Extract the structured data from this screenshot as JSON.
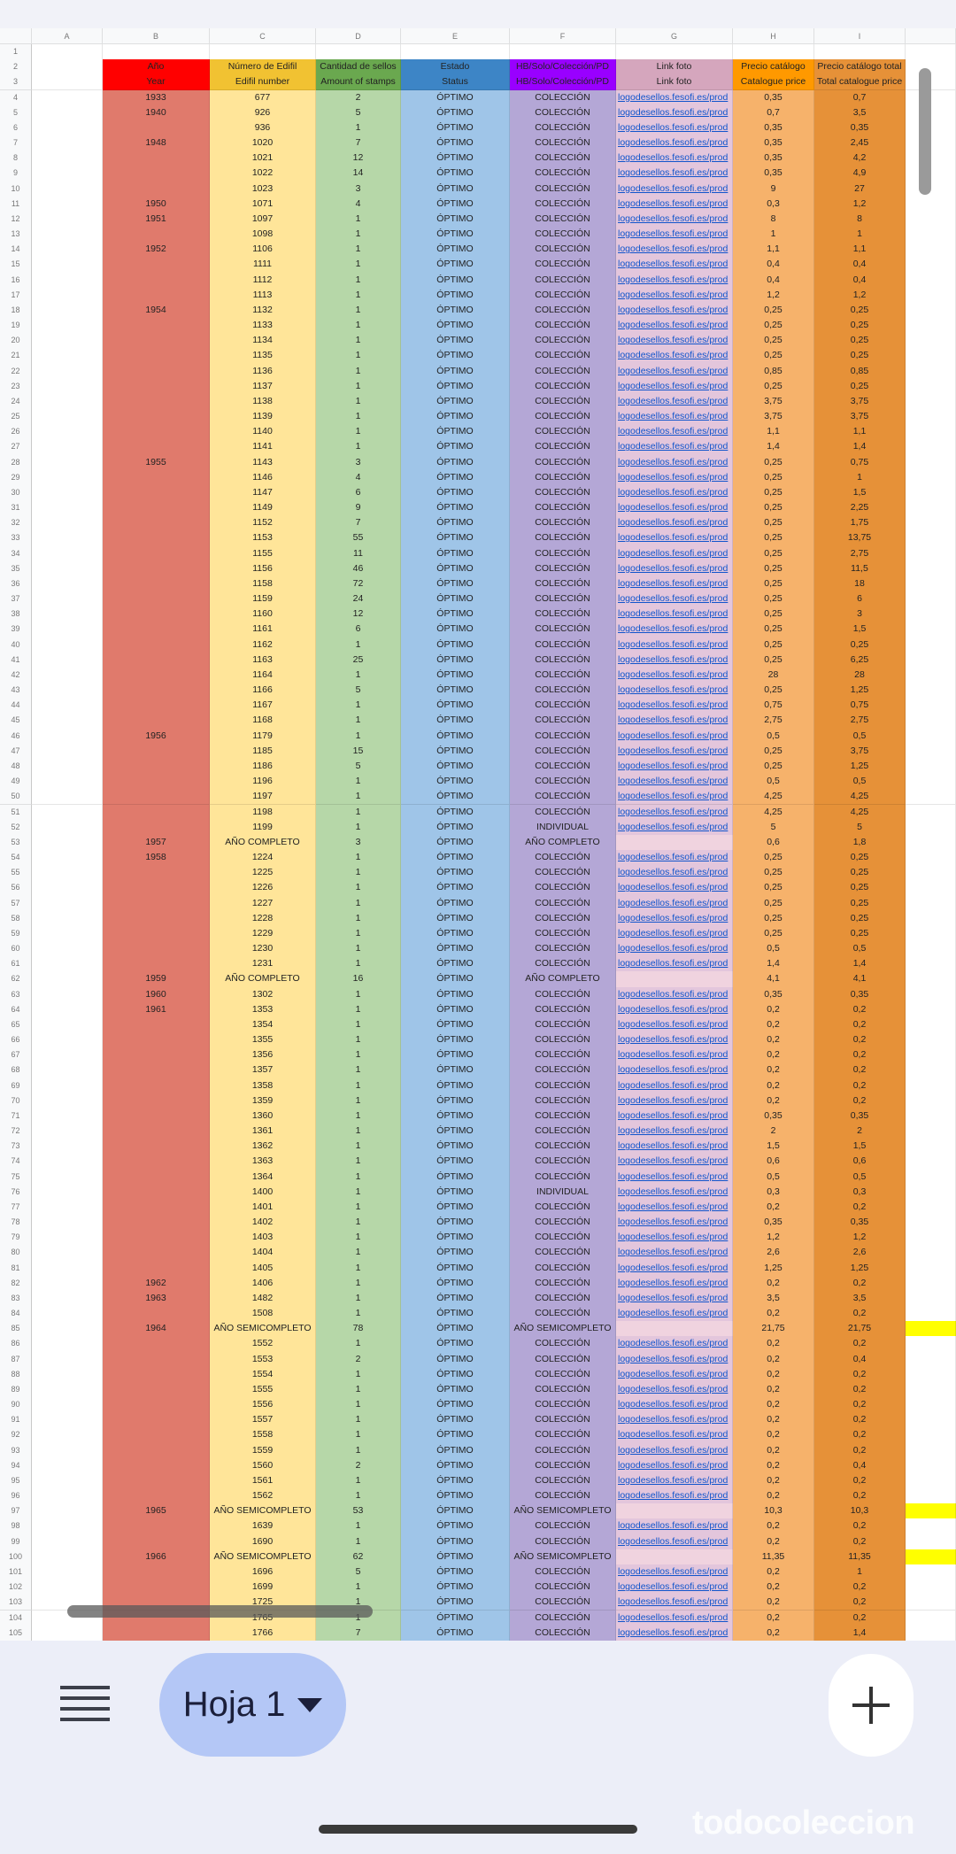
{
  "column_letters": [
    "A",
    "B",
    "C",
    "D",
    "E",
    "F",
    "G",
    "H",
    "I"
  ],
  "rows": [
    [
      1,
      null,
      null,
      null,
      null,
      null,
      null,
      null,
      null
    ],
    [
      2,
      "Año",
      "Número de Edifil",
      "Cantidad de sellos",
      "Estado",
      "HB/Solo/Colección/PD",
      "Link foto",
      "Precio catálogo",
      "Precio catálogo total"
    ],
    [
      3,
      "Year",
      "Edifil number",
      "Amount of stamps",
      "Status",
      "HB/Solo/Colección/PD",
      "Link foto",
      "Catalogue price",
      "Total catalogue price"
    ],
    [
      4,
      "1933",
      "677",
      "2",
      "ÓPTIMO",
      "COLECCIÓN",
      "logodesellos.fesofi.es/prod",
      "0,35",
      "0,7"
    ],
    [
      5,
      "1940",
      "926",
      "5",
      "ÓPTIMO",
      "COLECCIÓN",
      "logodesellos.fesofi.es/prod",
      "0,7",
      "3,5"
    ],
    [
      6,
      null,
      "936",
      "1",
      "ÓPTIMO",
      "COLECCIÓN",
      "logodesellos.fesofi.es/prod",
      "0,35",
      "0,35"
    ],
    [
      7,
      "1948",
      "1020",
      "7",
      "ÓPTIMO",
      "COLECCIÓN",
      "logodesellos.fesofi.es/prod",
      "0,35",
      "2,45"
    ],
    [
      8,
      null,
      "1021",
      "12",
      "ÓPTIMO",
      "COLECCIÓN",
      "logodesellos.fesofi.es/prod",
      "0,35",
      "4,2"
    ],
    [
      9,
      null,
      "1022",
      "14",
      "ÓPTIMO",
      "COLECCIÓN",
      "logodesellos.fesofi.es/prod",
      "0,35",
      "4,9"
    ],
    [
      10,
      null,
      "1023",
      "3",
      "ÓPTIMO",
      "COLECCIÓN",
      "logodesellos.fesofi.es/prod",
      "9",
      "27"
    ],
    [
      11,
      "1950",
      "1071",
      "4",
      "ÓPTIMO",
      "COLECCIÓN",
      "logodesellos.fesofi.es/prod",
      "0,3",
      "1,2"
    ],
    [
      12,
      "1951",
      "1097",
      "1",
      "ÓPTIMO",
      "COLECCIÓN",
      "logodesellos.fesofi.es/prod",
      "8",
      "8"
    ],
    [
      13,
      null,
      "1098",
      "1",
      "ÓPTIMO",
      "COLECCIÓN",
      "logodesellos.fesofi.es/prod",
      "1",
      "1"
    ],
    [
      14,
      "1952",
      "1106",
      "1",
      "ÓPTIMO",
      "COLECCIÓN",
      "logodesellos.fesofi.es/prod",
      "1,1",
      "1,1"
    ],
    [
      15,
      null,
      "1111",
      "1",
      "ÓPTIMO",
      "COLECCIÓN",
      "logodesellos.fesofi.es/prod",
      "0,4",
      "0,4"
    ],
    [
      16,
      null,
      "1112",
      "1",
      "ÓPTIMO",
      "COLECCIÓN",
      "logodesellos.fesofi.es/prod",
      "0,4",
      "0,4"
    ],
    [
      17,
      null,
      "1113",
      "1",
      "ÓPTIMO",
      "COLECCIÓN",
      "logodesellos.fesofi.es/prod",
      "1,2",
      "1,2"
    ],
    [
      18,
      "1954",
      "1132",
      "1",
      "ÓPTIMO",
      "COLECCIÓN",
      "logodesellos.fesofi.es/prod",
      "0,25",
      "0,25"
    ],
    [
      19,
      null,
      "1133",
      "1",
      "ÓPTIMO",
      "COLECCIÓN",
      "logodesellos.fesofi.es/prod",
      "0,25",
      "0,25"
    ],
    [
      20,
      null,
      "1134",
      "1",
      "ÓPTIMO",
      "COLECCIÓN",
      "logodesellos.fesofi.es/prod",
      "0,25",
      "0,25"
    ],
    [
      21,
      null,
      "1135",
      "1",
      "ÓPTIMO",
      "COLECCIÓN",
      "logodesellos.fesofi.es/prod",
      "0,25",
      "0,25"
    ],
    [
      22,
      null,
      "1136",
      "1",
      "ÓPTIMO",
      "COLECCIÓN",
      "logodesellos.fesofi.es/prod",
      "0,85",
      "0,85"
    ],
    [
      23,
      null,
      "1137",
      "1",
      "ÓPTIMO",
      "COLECCIÓN",
      "logodesellos.fesofi.es/prod",
      "0,25",
      "0,25"
    ],
    [
      24,
      null,
      "1138",
      "1",
      "ÓPTIMO",
      "COLECCIÓN",
      "logodesellos.fesofi.es/prod",
      "3,75",
      "3,75"
    ],
    [
      25,
      null,
      "1139",
      "1",
      "ÓPTIMO",
      "COLECCIÓN",
      "logodesellos.fesofi.es/prod",
      "3,75",
      "3,75"
    ],
    [
      26,
      null,
      "1140",
      "1",
      "ÓPTIMO",
      "COLECCIÓN",
      "logodesellos.fesofi.es/prod",
      "1,1",
      "1,1"
    ],
    [
      27,
      null,
      "1141",
      "1",
      "ÓPTIMO",
      "COLECCIÓN",
      "logodesellos.fesofi.es/prod",
      "1,4",
      "1,4"
    ],
    [
      28,
      "1955",
      "1143",
      "3",
      "ÓPTIMO",
      "COLECCIÓN",
      "logodesellos.fesofi.es/prod",
      "0,25",
      "0,75"
    ],
    [
      29,
      null,
      "1146",
      "4",
      "ÓPTIMO",
      "COLECCIÓN",
      "logodesellos.fesofi.es/prod",
      "0,25",
      "1"
    ],
    [
      30,
      null,
      "1147",
      "6",
      "ÓPTIMO",
      "COLECCIÓN",
      "logodesellos.fesofi.es/prod",
      "0,25",
      "1,5"
    ],
    [
      31,
      null,
      "1149",
      "9",
      "ÓPTIMO",
      "COLECCIÓN",
      "logodesellos.fesofi.es/prod",
      "0,25",
      "2,25"
    ],
    [
      32,
      null,
      "1152",
      "7",
      "ÓPTIMO",
      "COLECCIÓN",
      "logodesellos.fesofi.es/prod",
      "0,25",
      "1,75"
    ],
    [
      33,
      null,
      "1153",
      "55",
      "ÓPTIMO",
      "COLECCIÓN",
      "logodesellos.fesofi.es/prod",
      "0,25",
      "13,75"
    ],
    [
      34,
      null,
      "1155",
      "11",
      "ÓPTIMO",
      "COLECCIÓN",
      "logodesellos.fesofi.es/prod",
      "0,25",
      "2,75"
    ],
    [
      35,
      null,
      "1156",
      "46",
      "ÓPTIMO",
      "COLECCIÓN",
      "logodesellos.fesofi.es/prod",
      "0,25",
      "11,5"
    ],
    [
      36,
      null,
      "1158",
      "72",
      "ÓPTIMO",
      "COLECCIÓN",
      "logodesellos.fesofi.es/prod",
      "0,25",
      "18"
    ],
    [
      37,
      null,
      "1159",
      "24",
      "ÓPTIMO",
      "COLECCIÓN",
      "logodesellos.fesofi.es/prod",
      "0,25",
      "6"
    ],
    [
      38,
      null,
      "1160",
      "12",
      "ÓPTIMO",
      "COLECCIÓN",
      "logodesellos.fesofi.es/prod",
      "0,25",
      "3"
    ],
    [
      39,
      null,
      "1161",
      "6",
      "ÓPTIMO",
      "COLECCIÓN",
      "logodesellos.fesofi.es/prod",
      "0,25",
      "1,5"
    ],
    [
      40,
      null,
      "1162",
      "1",
      "ÓPTIMO",
      "COLECCIÓN",
      "logodesellos.fesofi.es/prod",
      "0,25",
      "0,25"
    ],
    [
      41,
      null,
      "1163",
      "25",
      "ÓPTIMO",
      "COLECCIÓN",
      "logodesellos.fesofi.es/prod",
      "0,25",
      "6,25"
    ],
    [
      42,
      null,
      "1164",
      "1",
      "ÓPTIMO",
      "COLECCIÓN",
      "logodesellos.fesofi.es/prod",
      "28",
      "28"
    ],
    [
      43,
      null,
      "1166",
      "5",
      "ÓPTIMO",
      "COLECCIÓN",
      "logodesellos.fesofi.es/prod",
      "0,25",
      "1,25"
    ],
    [
      44,
      null,
      "1167",
      "1",
      "ÓPTIMO",
      "COLECCIÓN",
      "logodesellos.fesofi.es/prod",
      "0,75",
      "0,75"
    ],
    [
      45,
      null,
      "1168",
      "1",
      "ÓPTIMO",
      "COLECCIÓN",
      "logodesellos.fesofi.es/prod",
      "2,75",
      "2,75"
    ],
    [
      46,
      "1956",
      "1179",
      "1",
      "ÓPTIMO",
      "COLECCIÓN",
      "logodesellos.fesofi.es/prod",
      "0,5",
      "0,5"
    ],
    [
      47,
      null,
      "1185",
      "15",
      "ÓPTIMO",
      "COLECCIÓN",
      "logodesellos.fesofi.es/prod",
      "0,25",
      "3,75"
    ],
    [
      48,
      null,
      "1186",
      "5",
      "ÓPTIMO",
      "COLECCIÓN",
      "logodesellos.fesofi.es/prod",
      "0,25",
      "1,25"
    ],
    [
      49,
      null,
      "1196",
      "1",
      "ÓPTIMO",
      "COLECCIÓN",
      "logodesellos.fesofi.es/prod",
      "0,5",
      "0,5"
    ],
    [
      50,
      null,
      "1197",
      "1",
      "ÓPTIMO",
      "COLECCIÓN",
      "logodesellos.fesofi.es/prod",
      "4,25",
      "4,25"
    ],
    [
      51,
      null,
      "1198",
      "1",
      "ÓPTIMO",
      "COLECCIÓN",
      "logodesellos.fesofi.es/prod",
      "4,25",
      "4,25"
    ],
    [
      52,
      null,
      "1199",
      "1",
      "ÓPTIMO",
      "INDIVIDUAL",
      "logodesellos.fesofi.es/prod",
      "5",
      "5"
    ],
    [
      53,
      "1957",
      "AÑO COMPLETO",
      "3",
      "ÓPTIMO",
      "AÑO COMPLETO",
      null,
      "0,6",
      "1,8"
    ],
    [
      54,
      "1958",
      "1224",
      "1",
      "ÓPTIMO",
      "COLECCIÓN",
      "logodesellos.fesofi.es/prod",
      "0,25",
      "0,25"
    ],
    [
      55,
      null,
      "1225",
      "1",
      "ÓPTIMO",
      "COLECCIÓN",
      "logodesellos.fesofi.es/prod",
      "0,25",
      "0,25"
    ],
    [
      56,
      null,
      "1226",
      "1",
      "ÓPTIMO",
      "COLECCIÓN",
      "logodesellos.fesofi.es/prod",
      "0,25",
      "0,25"
    ],
    [
      57,
      null,
      "1227",
      "1",
      "ÓPTIMO",
      "COLECCIÓN",
      "logodesellos.fesofi.es/prod",
      "0,25",
      "0,25"
    ],
    [
      58,
      null,
      "1228",
      "1",
      "ÓPTIMO",
      "COLECCIÓN",
      "logodesellos.fesofi.es/prod",
      "0,25",
      "0,25"
    ],
    [
      59,
      null,
      "1229",
      "1",
      "ÓPTIMO",
      "COLECCIÓN",
      "logodesellos.fesofi.es/prod",
      "0,25",
      "0,25"
    ],
    [
      60,
      null,
      "1230",
      "1",
      "ÓPTIMO",
      "COLECCIÓN",
      "logodesellos.fesofi.es/prod",
      "0,5",
      "0,5"
    ],
    [
      61,
      null,
      "1231",
      "1",
      "ÓPTIMO",
      "COLECCIÓN",
      "logodesellos.fesofi.es/prod",
      "1,4",
      "1,4"
    ],
    [
      62,
      "1959",
      "AÑO COMPLETO",
      "16",
      "ÓPTIMO",
      "AÑO COMPLETO",
      null,
      "4,1",
      "4,1"
    ],
    [
      63,
      "1960",
      "1302",
      "1",
      "ÓPTIMO",
      "COLECCIÓN",
      "logodesellos.fesofi.es/prod",
      "0,35",
      "0,35"
    ],
    [
      64,
      "1961",
      "1353",
      "1",
      "ÓPTIMO",
      "COLECCIÓN",
      "logodesellos.fesofi.es/prod",
      "0,2",
      "0,2"
    ],
    [
      65,
      null,
      "1354",
      "1",
      "ÓPTIMO",
      "COLECCIÓN",
      "logodesellos.fesofi.es/prod",
      "0,2",
      "0,2"
    ],
    [
      66,
      null,
      "1355",
      "1",
      "ÓPTIMO",
      "COLECCIÓN",
      "logodesellos.fesofi.es/prod",
      "0,2",
      "0,2"
    ],
    [
      67,
      null,
      "1356",
      "1",
      "ÓPTIMO",
      "COLECCIÓN",
      "logodesellos.fesofi.es/prod",
      "0,2",
      "0,2"
    ],
    [
      68,
      null,
      "1357",
      "1",
      "ÓPTIMO",
      "COLECCIÓN",
      "logodesellos.fesofi.es/prod",
      "0,2",
      "0,2"
    ],
    [
      69,
      null,
      "1358",
      "1",
      "ÓPTIMO",
      "COLECCIÓN",
      "logodesellos.fesofi.es/prod",
      "0,2",
      "0,2"
    ],
    [
      70,
      null,
      "1359",
      "1",
      "ÓPTIMO",
      "COLECCIÓN",
      "logodesellos.fesofi.es/prod",
      "0,2",
      "0,2"
    ],
    [
      71,
      null,
      "1360",
      "1",
      "ÓPTIMO",
      "COLECCIÓN",
      "logodesellos.fesofi.es/prod",
      "0,35",
      "0,35"
    ],
    [
      72,
      null,
      "1361",
      "1",
      "ÓPTIMO",
      "COLECCIÓN",
      "logodesellos.fesofi.es/prod",
      "2",
      "2"
    ],
    [
      73,
      null,
      "1362",
      "1",
      "ÓPTIMO",
      "COLECCIÓN",
      "logodesellos.fesofi.es/prod",
      "1,5",
      "1,5"
    ],
    [
      74,
      null,
      "1363",
      "1",
      "ÓPTIMO",
      "COLECCIÓN",
      "logodesellos.fesofi.es/prod",
      "0,6",
      "0,6"
    ],
    [
      75,
      null,
      "1364",
      "1",
      "ÓPTIMO",
      "COLECCIÓN",
      "logodesellos.fesofi.es/prod",
      "0,5",
      "0,5"
    ],
    [
      76,
      null,
      "1400",
      "1",
      "ÓPTIMO",
      "INDIVIDUAL",
      "logodesellos.fesofi.es/prod",
      "0,3",
      "0,3"
    ],
    [
      77,
      null,
      "1401",
      "1",
      "ÓPTIMO",
      "COLECCIÓN",
      "logodesellos.fesofi.es/prod",
      "0,2",
      "0,2"
    ],
    [
      78,
      null,
      "1402",
      "1",
      "ÓPTIMO",
      "COLECCIÓN",
      "logodesellos.fesofi.es/prod",
      "0,35",
      "0,35"
    ],
    [
      79,
      null,
      "1403",
      "1",
      "ÓPTIMO",
      "COLECCIÓN",
      "logodesellos.fesofi.es/prod",
      "1,2",
      "1,2"
    ],
    [
      80,
      null,
      "1404",
      "1",
      "ÓPTIMO",
      "COLECCIÓN",
      "logodesellos.fesofi.es/prod",
      "2,6",
      "2,6"
    ],
    [
      81,
      null,
      "1405",
      "1",
      "ÓPTIMO",
      "COLECCIÓN",
      "logodesellos.fesofi.es/prod",
      "1,25",
      "1,25"
    ],
    [
      82,
      "1962",
      "1406",
      "1",
      "ÓPTIMO",
      "COLECCIÓN",
      "logodesellos.fesofi.es/prod",
      "0,2",
      "0,2"
    ],
    [
      83,
      "1963",
      "1482",
      "1",
      "ÓPTIMO",
      "COLECCIÓN",
      "logodesellos.fesofi.es/prod",
      "3,5",
      "3,5"
    ],
    [
      84,
      null,
      "1508",
      "1",
      "ÓPTIMO",
      "COLECCIÓN",
      "logodesellos.fesofi.es/prod",
      "0,2",
      "0,2"
    ],
    [
      85,
      "1964",
      "AÑO SEMICOMPLETO",
      "78",
      "ÓPTIMO",
      "AÑO SEMICOMPLETO",
      null,
      "21,75",
      "21,75"
    ],
    [
      86,
      null,
      "1552",
      "1",
      "ÓPTIMO",
      "COLECCIÓN",
      "logodesellos.fesofi.es/prod",
      "0,2",
      "0,2"
    ],
    [
      87,
      null,
      "1553",
      "2",
      "ÓPTIMO",
      "COLECCIÓN",
      "logodesellos.fesofi.es/prod",
      "0,2",
      "0,4"
    ],
    [
      88,
      null,
      "1554",
      "1",
      "ÓPTIMO",
      "COLECCIÓN",
      "logodesellos.fesofi.es/prod",
      "0,2",
      "0,2"
    ],
    [
      89,
      null,
      "1555",
      "1",
      "ÓPTIMO",
      "COLECCIÓN",
      "logodesellos.fesofi.es/prod",
      "0,2",
      "0,2"
    ],
    [
      90,
      null,
      "1556",
      "1",
      "ÓPTIMO",
      "COLECCIÓN",
      "logodesellos.fesofi.es/prod",
      "0,2",
      "0,2"
    ],
    [
      91,
      null,
      "1557",
      "1",
      "ÓPTIMO",
      "COLECCIÓN",
      "logodesellos.fesofi.es/prod",
      "0,2",
      "0,2"
    ],
    [
      92,
      null,
      "1558",
      "1",
      "ÓPTIMO",
      "COLECCIÓN",
      "logodesellos.fesofi.es/prod",
      "0,2",
      "0,2"
    ],
    [
      93,
      null,
      "1559",
      "1",
      "ÓPTIMO",
      "COLECCIÓN",
      "logodesellos.fesofi.es/prod",
      "0,2",
      "0,2"
    ],
    [
      94,
      null,
      "1560",
      "2",
      "ÓPTIMO",
      "COLECCIÓN",
      "logodesellos.fesofi.es/prod",
      "0,2",
      "0,4"
    ],
    [
      95,
      null,
      "1561",
      "1",
      "ÓPTIMO",
      "COLECCIÓN",
      "logodesellos.fesofi.es/prod",
      "0,2",
      "0,2"
    ],
    [
      96,
      null,
      "1562",
      "1",
      "ÓPTIMO",
      "COLECCIÓN",
      "logodesellos.fesofi.es/prod",
      "0,2",
      "0,2"
    ],
    [
      97,
      "1965",
      "AÑO SEMICOMPLETO",
      "53",
      "ÓPTIMO",
      "AÑO SEMICOMPLETO",
      null,
      "10,3",
      "10,3"
    ],
    [
      98,
      null,
      "1639",
      "1",
      "ÓPTIMO",
      "COLECCIÓN",
      "logodesellos.fesofi.es/prod",
      "0,2",
      "0,2"
    ],
    [
      99,
      null,
      "1690",
      "1",
      "ÓPTIMO",
      "COLECCIÓN",
      "logodesellos.fesofi.es/prod",
      "0,2",
      "0,2"
    ],
    [
      100,
      "1966",
      "AÑO SEMICOMPLETO",
      "62",
      "ÓPTIMO",
      "AÑO SEMICOMPLETO",
      null,
      "11,35",
      "11,35"
    ],
    [
      101,
      null,
      "1696",
      "5",
      "ÓPTIMO",
      "COLECCIÓN",
      "logodesellos.fesofi.es/prod",
      "0,2",
      "1"
    ],
    [
      102,
      null,
      "1699",
      "1",
      "ÓPTIMO",
      "COLECCIÓN",
      "logodesellos.fesofi.es/prod",
      "0,2",
      "0,2"
    ],
    [
      103,
      null,
      "1725",
      "1",
      "ÓPTIMO",
      "COLECCIÓN",
      "logodesellos.fesofi.es/prod",
      "0,2",
      "0,2"
    ],
    [
      104,
      null,
      "1765",
      "1",
      "ÓPTIMO",
      "COLECCIÓN",
      "logodesellos.fesofi.es/prod",
      "0,2",
      "0,2"
    ],
    [
      105,
      null,
      "1766",
      "7",
      "ÓPTIMO",
      "COLECCIÓN",
      "logodesellos.fesofi.es/prod",
      "0,2",
      "1,4"
    ]
  ],
  "highlight_rows": [
    85,
    97,
    100
  ],
  "sheet_tab": "Hoja 1",
  "watermark": "todocoleccion"
}
